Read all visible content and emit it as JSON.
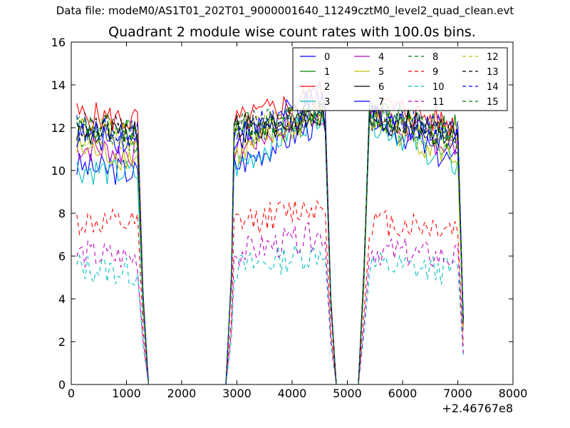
{
  "suptitle": "Data file: modeM0/AS1T01_202T01_9000001640_11249cztM0_level2_quad_clean.evt",
  "chart_data": {
    "type": "line",
    "title": "Quadrant 2 module wise count rates with 100.0s bins.",
    "xlabel": "",
    "ylabel": "",
    "x_offset_label": "+2.46767e8",
    "xlim": [
      0,
      8000
    ],
    "ylim": [
      0,
      16
    ],
    "xticks": [
      "0",
      "1000",
      "2000",
      "3000",
      "4000",
      "5000",
      "6000",
      "7000",
      "8000"
    ],
    "yticks": [
      "0",
      "2",
      "4",
      "6",
      "8",
      "10",
      "12",
      "14",
      "16"
    ],
    "grid": false,
    "legend_position": "top-right",
    "series": [
      {
        "name": "0",
        "color": "#0000ff",
        "dash": "solid",
        "base": [
          10.2,
          9.9,
          12.4,
          10.2,
          12.4,
          10.3,
          12.6
        ]
      },
      {
        "name": "1",
        "color": "#008000",
        "dash": "solid",
        "base": [
          12.0,
          12.0,
          12.8,
          12.0,
          12.6,
          11.9,
          12.8
        ]
      },
      {
        "name": "2",
        "color": "#ff0000",
        "dash": "solid",
        "base": [
          12.6,
          12.3,
          13.2,
          12.2,
          13.6,
          12.1,
          13.2
        ]
      },
      {
        "name": "3",
        "color": "#00bfbf",
        "dash": "solid",
        "base": [
          10.1,
          9.8,
          12.6,
          10.1,
          12.8,
          10.2,
          12.4
        ]
      },
      {
        "name": "4",
        "color": "#bf00bf",
        "dash": "solid",
        "base": [
          11.1,
          10.8,
          12.4,
          11.0,
          12.8,
          11.0,
          12.6
        ]
      },
      {
        "name": "5",
        "color": "#bfbf00",
        "dash": "solid",
        "base": [
          11.0,
          10.6,
          12.2,
          10.7,
          12.6,
          10.6,
          12.4
        ]
      },
      {
        "name": "6",
        "color": "#000000",
        "dash": "solid",
        "base": [
          11.8,
          11.6,
          12.3,
          11.8,
          12.5,
          11.7,
          12.5
        ]
      },
      {
        "name": "7",
        "color": "#0000ff",
        "dash": "solid",
        "base": [
          11.7,
          11.4,
          12.4,
          11.5,
          13.4,
          11.5,
          12.7
        ]
      },
      {
        "name": "8",
        "color": "#008000",
        "dash": "dashed",
        "base": [
          11.7,
          11.4,
          12.4,
          11.6,
          12.8,
          11.4,
          12.6
        ]
      },
      {
        "name": "9",
        "color": "#ff0000",
        "dash": "dashed",
        "base": [
          7.6,
          7.4,
          7.7,
          7.5,
          8.4,
          7.3,
          7.6
        ]
      },
      {
        "name": "10",
        "color": "#00bfbf",
        "dash": "dashed",
        "base": [
          5.5,
          5.2,
          5.3,
          5.4,
          6.2,
          5.3,
          5.6
        ]
      },
      {
        "name": "11",
        "color": "#bf00bf",
        "dash": "dashed",
        "base": [
          6.1,
          5.9,
          6.4,
          6.1,
          7.0,
          5.9,
          6.3
        ]
      },
      {
        "name": "12",
        "color": "#bfbf00",
        "dash": "dashed",
        "base": [
          11.9,
          11.6,
          12.4,
          11.7,
          12.6,
          11.5,
          12.5
        ]
      },
      {
        "name": "13",
        "color": "#000000",
        "dash": "dashed",
        "base": [
          12.1,
          11.8,
          12.5,
          12.0,
          12.7,
          11.8,
          12.6
        ]
      },
      {
        "name": "14",
        "color": "#0000ff",
        "dash": "dashed",
        "base": [
          12.0,
          11.8,
          12.5,
          11.9,
          12.7,
          11.9,
          12.4
        ]
      },
      {
        "name": "15",
        "color": "#008000",
        "dash": "dashed",
        "base": [
          12.0,
          11.8,
          12.6,
          11.9,
          12.8,
          11.6,
          12.6
        ]
      }
    ]
  }
}
